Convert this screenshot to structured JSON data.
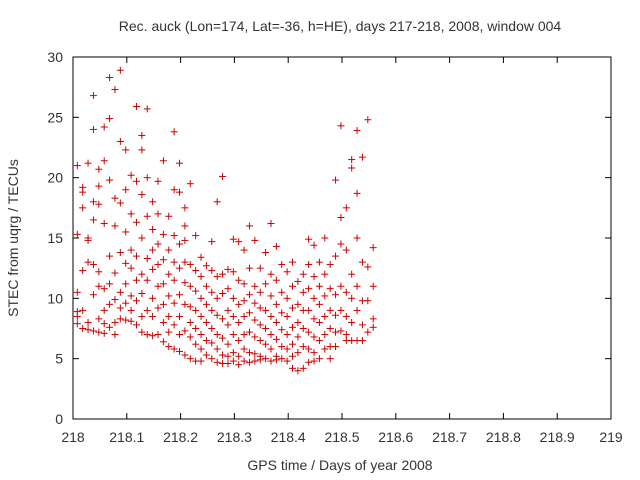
{
  "chart_data": {
    "type": "scatter",
    "title": "Rec. auck (Lon=174, Lat=-36, h=HE), days 217-218, 2008, window 004",
    "xlabel": "GPS time / Days of year 2008",
    "ylabel": "STEC from uqrg / TECUs",
    "xlim": [
      218,
      219
    ],
    "ylim": [
      0,
      30
    ],
    "x_ticks": [
      218,
      218.1,
      218.2,
      218.3,
      218.4,
      218.5,
      218.6,
      218.7,
      218.8,
      218.9,
      219
    ],
    "y_ticks": [
      0,
      5,
      10,
      15,
      20,
      25,
      30
    ],
    "grid": false,
    "marker": "+",
    "color": "#cc0000",
    "points": [
      [
        218.008,
        21.0
      ],
      [
        218.008,
        15.3
      ],
      [
        218.008,
        10.5
      ],
      [
        218.008,
        8.9
      ],
      [
        218.008,
        8.5
      ],
      [
        218.008,
        7.9
      ],
      [
        218.018,
        19.2
      ],
      [
        218.018,
        18.8
      ],
      [
        218.018,
        17.5
      ],
      [
        218.018,
        12.3
      ],
      [
        218.018,
        9.0
      ],
      [
        218.018,
        7.5
      ],
      [
        218.028,
        21.2
      ],
      [
        218.028,
        15.0
      ],
      [
        218.028,
        14.8
      ],
      [
        218.028,
        13.0
      ],
      [
        218.028,
        8.0
      ],
      [
        218.028,
        7.4
      ],
      [
        218.038,
        26.8
      ],
      [
        218.038,
        24.0
      ],
      [
        218.038,
        18.0
      ],
      [
        218.038,
        16.5
      ],
      [
        218.038,
        12.8
      ],
      [
        218.038,
        10.3
      ],
      [
        218.038,
        7.3
      ],
      [
        218.048,
        20.7
      ],
      [
        218.048,
        19.3
      ],
      [
        218.048,
        17.8
      ],
      [
        218.048,
        12.2
      ],
      [
        218.048,
        11.0
      ],
      [
        218.048,
        8.3
      ],
      [
        218.048,
        7.2
      ],
      [
        218.058,
        24.2
      ],
      [
        218.058,
        21.4
      ],
      [
        218.058,
        16.2
      ],
      [
        218.058,
        10.8
      ],
      [
        218.058,
        9.0
      ],
      [
        218.058,
        7.9
      ],
      [
        218.058,
        7.1
      ],
      [
        218.068,
        28.3
      ],
      [
        218.068,
        24.9
      ],
      [
        218.068,
        19.8
      ],
      [
        218.068,
        13.5
      ],
      [
        218.068,
        11.2
      ],
      [
        218.068,
        9.5
      ],
      [
        218.068,
        7.6
      ],
      [
        218.078,
        27.3
      ],
      [
        218.078,
        18.3
      ],
      [
        218.078,
        16.0
      ],
      [
        218.078,
        12.1
      ],
      [
        218.078,
        9.9
      ],
      [
        218.078,
        8.0
      ],
      [
        218.078,
        7.0
      ],
      [
        218.088,
        28.9
      ],
      [
        218.088,
        23.0
      ],
      [
        218.088,
        17.9
      ],
      [
        218.088,
        13.8
      ],
      [
        218.088,
        10.5
      ],
      [
        218.088,
        9.2
      ],
      [
        218.088,
        8.3
      ],
      [
        218.098,
        22.3
      ],
      [
        218.098,
        19.0
      ],
      [
        218.098,
        15.5
      ],
      [
        218.098,
        12.9
      ],
      [
        218.098,
        11.2
      ],
      [
        218.098,
        9.6
      ],
      [
        218.098,
        8.2
      ],
      [
        218.108,
        20.2
      ],
      [
        218.108,
        17.0
      ],
      [
        218.108,
        14.0
      ],
      [
        218.108,
        12.5
      ],
      [
        218.108,
        10.2
      ],
      [
        218.108,
        9.0
      ],
      [
        218.108,
        8.1
      ],
      [
        218.118,
        25.9
      ],
      [
        218.118,
        19.7
      ],
      [
        218.118,
        16.3
      ],
      [
        218.118,
        13.5
      ],
      [
        218.118,
        11.5
      ],
      [
        218.118,
        9.8
      ],
      [
        218.118,
        7.8
      ],
      [
        218.128,
        23.5
      ],
      [
        218.128,
        22.3
      ],
      [
        218.128,
        18.6
      ],
      [
        218.128,
        15.0
      ],
      [
        218.128,
        12.0
      ],
      [
        218.128,
        10.4
      ],
      [
        218.128,
        8.5
      ],
      [
        218.128,
        7.2
      ],
      [
        218.138,
        25.7
      ],
      [
        218.138,
        20.0
      ],
      [
        218.138,
        16.8
      ],
      [
        218.138,
        13.3
      ],
      [
        218.138,
        11.5
      ],
      [
        218.138,
        9.0
      ],
      [
        218.138,
        7.0
      ],
      [
        218.148,
        18.0
      ],
      [
        218.148,
        15.7
      ],
      [
        218.148,
        14.0
      ],
      [
        218.148,
        12.4
      ],
      [
        218.148,
        10.0
      ],
      [
        218.148,
        8.5
      ],
      [
        218.148,
        6.9
      ],
      [
        218.158,
        19.7
      ],
      [
        218.158,
        17.0
      ],
      [
        218.158,
        14.5
      ],
      [
        218.158,
        12.8
      ],
      [
        218.158,
        11.0
      ],
      [
        218.158,
        9.2
      ],
      [
        218.158,
        7.0
      ],
      [
        218.168,
        21.4
      ],
      [
        218.168,
        15.3
      ],
      [
        218.168,
        13.2
      ],
      [
        218.168,
        11.2
      ],
      [
        218.168,
        9.5
      ],
      [
        218.168,
        8.0
      ],
      [
        218.168,
        6.4
      ],
      [
        218.178,
        16.8
      ],
      [
        218.178,
        14.0
      ],
      [
        218.178,
        12.0
      ],
      [
        218.178,
        10.2
      ],
      [
        218.178,
        8.5
      ],
      [
        218.178,
        7.2
      ],
      [
        218.178,
        6.0
      ],
      [
        218.188,
        23.8
      ],
      [
        218.188,
        19.0
      ],
      [
        218.188,
        15.2
      ],
      [
        218.188,
        13.0
      ],
      [
        218.188,
        11.5
      ],
      [
        218.188,
        9.6
      ],
      [
        218.188,
        7.8
      ],
      [
        218.188,
        5.8
      ],
      [
        218.198,
        21.2
      ],
      [
        218.198,
        18.8
      ],
      [
        218.198,
        14.5
      ],
      [
        218.198,
        12.5
      ],
      [
        218.198,
        10.3
      ],
      [
        218.198,
        8.5
      ],
      [
        218.198,
        7.0
      ],
      [
        218.198,
        5.6
      ],
      [
        218.208,
        17.5
      ],
      [
        218.208,
        16.0
      ],
      [
        218.208,
        14.8
      ],
      [
        218.208,
        13.0
      ],
      [
        218.208,
        11.3
      ],
      [
        218.208,
        9.5
      ],
      [
        218.208,
        7.3
      ],
      [
        218.208,
        5.3
      ],
      [
        218.218,
        19.5
      ],
      [
        218.218,
        12.8
      ],
      [
        218.218,
        11.0
      ],
      [
        218.218,
        9.3
      ],
      [
        218.218,
        8.0
      ],
      [
        218.218,
        6.8
      ],
      [
        218.218,
        5.0
      ],
      [
        218.228,
        15.2
      ],
      [
        218.228,
        12.3
      ],
      [
        218.228,
        10.6
      ],
      [
        218.228,
        9.0
      ],
      [
        218.228,
        7.5
      ],
      [
        218.228,
        6.2
      ],
      [
        218.228,
        4.8
      ],
      [
        218.238,
        13.4
      ],
      [
        218.238,
        11.8
      ],
      [
        218.238,
        10.0
      ],
      [
        218.238,
        8.5
      ],
      [
        218.238,
        7.0
      ],
      [
        218.238,
        5.8
      ],
      [
        218.238,
        4.8
      ],
      [
        218.248,
        12.7
      ],
      [
        218.248,
        11.0
      ],
      [
        218.248,
        9.5
      ],
      [
        218.248,
        8.0
      ],
      [
        218.248,
        6.5
      ],
      [
        218.248,
        5.3
      ],
      [
        218.258,
        14.7
      ],
      [
        218.258,
        12.3
      ],
      [
        218.258,
        10.5
      ],
      [
        218.258,
        9.0
      ],
      [
        218.258,
        7.5
      ],
      [
        218.258,
        6.3
      ],
      [
        218.258,
        5.0
      ],
      [
        218.268,
        18.0
      ],
      [
        218.268,
        11.8
      ],
      [
        218.268,
        10.0
      ],
      [
        218.268,
        8.6
      ],
      [
        218.268,
        7.0
      ],
      [
        218.268,
        5.8
      ],
      [
        218.268,
        4.7
      ],
      [
        218.278,
        20.1
      ],
      [
        218.278,
        12.0
      ],
      [
        218.278,
        10.4
      ],
      [
        218.278,
        8.3
      ],
      [
        218.278,
        6.7
      ],
      [
        218.278,
        5.3
      ],
      [
        218.278,
        4.6
      ],
      [
        218.288,
        12.4
      ],
      [
        218.288,
        10.8
      ],
      [
        218.288,
        9.0
      ],
      [
        218.288,
        7.8
      ],
      [
        218.288,
        6.2
      ],
      [
        218.288,
        5.2
      ],
      [
        218.288,
        4.6
      ],
      [
        218.298,
        14.9
      ],
      [
        218.298,
        12.2
      ],
      [
        218.298,
        10.0
      ],
      [
        218.298,
        8.5
      ],
      [
        218.298,
        7.0
      ],
      [
        218.298,
        5.5
      ],
      [
        218.298,
        4.8
      ],
      [
        218.308,
        14.7
      ],
      [
        218.308,
        11.5
      ],
      [
        218.308,
        9.5
      ],
      [
        218.308,
        8.0
      ],
      [
        218.308,
        6.5
      ],
      [
        218.308,
        5.2
      ],
      [
        218.308,
        4.5
      ],
      [
        218.318,
        14.0
      ],
      [
        218.318,
        11.2
      ],
      [
        218.318,
        9.8
      ],
      [
        218.318,
        8.5
      ],
      [
        218.318,
        7.0
      ],
      [
        218.318,
        5.8
      ],
      [
        218.318,
        4.8
      ],
      [
        218.328,
        16.0
      ],
      [
        218.328,
        12.5
      ],
      [
        218.328,
        10.3
      ],
      [
        218.328,
        8.8
      ],
      [
        218.328,
        7.2
      ],
      [
        218.328,
        5.5
      ],
      [
        218.328,
        4.7
      ],
      [
        218.338,
        14.8
      ],
      [
        218.338,
        11.0
      ],
      [
        218.338,
        9.6
      ],
      [
        218.338,
        8.2
      ],
      [
        218.338,
        6.8
      ],
      [
        218.338,
        5.4
      ],
      [
        218.338,
        4.8
      ],
      [
        218.348,
        12.5
      ],
      [
        218.348,
        10.5
      ],
      [
        218.348,
        9.2
      ],
      [
        218.348,
        7.8
      ],
      [
        218.348,
        6.5
      ],
      [
        218.348,
        5.2
      ],
      [
        218.348,
        4.9
      ],
      [
        218.358,
        13.8
      ],
      [
        218.358,
        11.2
      ],
      [
        218.358,
        9.0
      ],
      [
        218.358,
        7.5
      ],
      [
        218.358,
        6.2
      ],
      [
        218.358,
        5.0
      ],
      [
        218.368,
        16.2
      ],
      [
        218.368,
        12.0
      ],
      [
        218.368,
        10.2
      ],
      [
        218.368,
        8.5
      ],
      [
        218.368,
        7.0
      ],
      [
        218.368,
        5.8
      ],
      [
        218.368,
        4.8
      ],
      [
        218.378,
        14.3
      ],
      [
        218.378,
        11.5
      ],
      [
        218.378,
        9.5
      ],
      [
        218.378,
        8.0
      ],
      [
        218.378,
        6.6
      ],
      [
        218.378,
        5.2
      ],
      [
        218.378,
        4.9
      ],
      [
        218.388,
        12.8
      ],
      [
        218.388,
        10.5
      ],
      [
        218.388,
        8.8
      ],
      [
        218.388,
        7.4
      ],
      [
        218.388,
        6.0
      ],
      [
        218.388,
        5.0
      ],
      [
        218.398,
        12.2
      ],
      [
        218.398,
        10.0
      ],
      [
        218.398,
        8.5
      ],
      [
        218.398,
        7.0
      ],
      [
        218.398,
        5.8
      ],
      [
        218.398,
        4.8
      ],
      [
        218.408,
        13.0
      ],
      [
        218.408,
        11.0
      ],
      [
        218.408,
        9.2
      ],
      [
        218.408,
        7.6
      ],
      [
        218.408,
        6.2
      ],
      [
        218.408,
        5.2
      ],
      [
        218.408,
        4.2
      ],
      [
        218.418,
        11.4
      ],
      [
        218.418,
        9.5
      ],
      [
        218.418,
        8.0
      ],
      [
        218.418,
        6.8
      ],
      [
        218.418,
        5.5
      ],
      [
        218.418,
        4.0
      ],
      [
        218.428,
        12.0
      ],
      [
        218.428,
        10.5
      ],
      [
        218.428,
        9.0
      ],
      [
        218.428,
        7.5
      ],
      [
        218.428,
        6.0
      ],
      [
        218.428,
        4.2
      ],
      [
        218.438,
        14.9
      ],
      [
        218.438,
        12.8
      ],
      [
        218.438,
        10.8
      ],
      [
        218.438,
        9.0
      ],
      [
        218.438,
        7.2
      ],
      [
        218.438,
        5.8
      ],
      [
        218.438,
        4.7
      ],
      [
        218.448,
        14.4
      ],
      [
        218.448,
        11.8
      ],
      [
        218.448,
        10.0
      ],
      [
        218.448,
        8.3
      ],
      [
        218.448,
        6.8
      ],
      [
        218.448,
        5.5
      ],
      [
        218.448,
        4.8
      ],
      [
        218.458,
        13.0
      ],
      [
        218.458,
        11.0
      ],
      [
        218.458,
        9.5
      ],
      [
        218.458,
        8.0
      ],
      [
        218.458,
        6.5
      ],
      [
        218.458,
        5.0
      ],
      [
        218.468,
        15.0
      ],
      [
        218.468,
        12.0
      ],
      [
        218.468,
        10.2
      ],
      [
        218.468,
        8.5
      ],
      [
        218.468,
        7.0
      ],
      [
        218.468,
        5.8
      ],
      [
        218.478,
        12.8
      ],
      [
        218.478,
        10.8
      ],
      [
        218.478,
        9.0
      ],
      [
        218.478,
        7.5
      ],
      [
        218.478,
        6.0
      ],
      [
        218.478,
        5.0
      ],
      [
        218.488,
        19.8
      ],
      [
        218.488,
        13.5
      ],
      [
        218.488,
        10.3
      ],
      [
        218.488,
        8.6
      ],
      [
        218.488,
        7.2
      ],
      [
        218.488,
        6.0
      ],
      [
        218.498,
        24.3
      ],
      [
        218.498,
        16.7
      ],
      [
        218.498,
        14.5
      ],
      [
        218.498,
        11.0
      ],
      [
        218.498,
        9.0
      ],
      [
        218.498,
        7.3
      ],
      [
        218.508,
        17.5
      ],
      [
        218.508,
        14.0
      ],
      [
        218.508,
        10.5
      ],
      [
        218.508,
        8.5
      ],
      [
        218.508,
        7.0
      ],
      [
        218.508,
        6.5
      ],
      [
        218.518,
        21.5
      ],
      [
        218.518,
        20.8
      ],
      [
        218.518,
        12.0
      ],
      [
        218.518,
        10.0
      ],
      [
        218.518,
        8.0
      ],
      [
        218.518,
        6.5
      ],
      [
        218.528,
        23.9
      ],
      [
        218.528,
        18.7
      ],
      [
        218.528,
        15.0
      ],
      [
        218.528,
        11.0
      ],
      [
        218.528,
        9.0
      ],
      [
        218.528,
        6.5
      ],
      [
        218.538,
        21.7
      ],
      [
        218.538,
        13.0
      ],
      [
        218.538,
        9.8
      ],
      [
        218.538,
        7.8
      ],
      [
        218.538,
        6.5
      ],
      [
        218.548,
        24.8
      ],
      [
        218.548,
        12.6
      ],
      [
        218.548,
        9.8
      ],
      [
        218.548,
        7.2
      ],
      [
        218.558,
        14.2
      ],
      [
        218.558,
        11.0
      ],
      [
        218.558,
        8.3
      ],
      [
        218.558,
        7.6
      ]
    ]
  }
}
